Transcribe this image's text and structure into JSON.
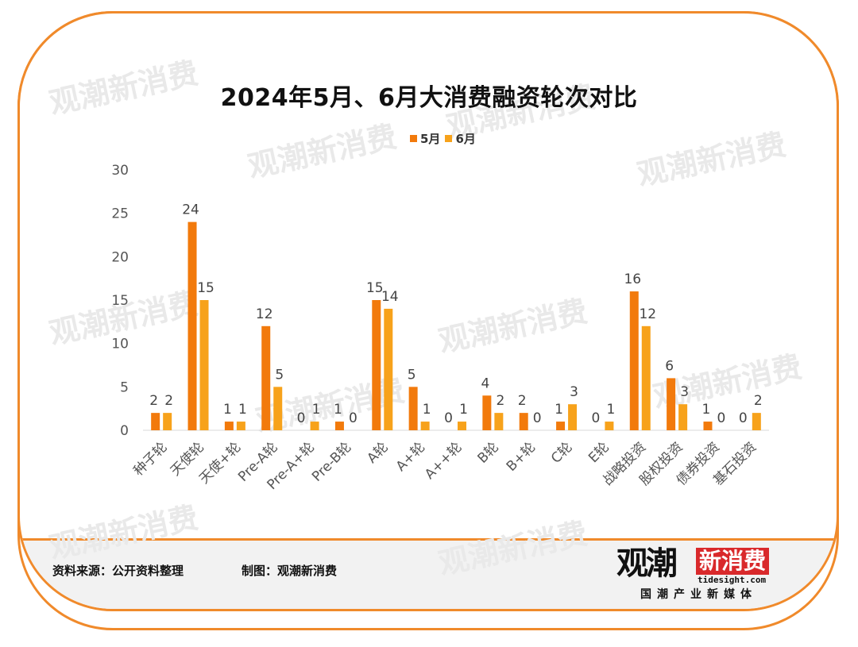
{
  "title": "2024年5月、6月大消费融资轮次对比",
  "footer": {
    "source": "资料来源：公开资料整理",
    "maker": "制图：观潮新消费"
  },
  "logo": {
    "name_dark": "观潮",
    "name_red": "新消费",
    "site": "tidesight.com",
    "slogan": "国潮产业新媒体"
  },
  "watermark": "观潮新消费",
  "colors": {
    "may": "#f27a0c",
    "june": "#f7a21b",
    "frame": "#f08a2b"
  },
  "chart_data": {
    "type": "bar",
    "title": "2024年5月、6月大消费融资轮次对比",
    "categories": [
      "种子轮",
      "天使轮",
      "天使+轮",
      "Pre-A轮",
      "Pre-A+轮",
      "Pre-B轮",
      "A轮",
      "A+轮",
      "A++轮",
      "B轮",
      "B+轮",
      "C轮",
      "E轮",
      "战略投资",
      "股权投资",
      "债券投资",
      "基石投资"
    ],
    "series": [
      {
        "name": "5月",
        "values": [
          2,
          24,
          1,
          12,
          0,
          1,
          15,
          5,
          0,
          4,
          2,
          1,
          0,
          16,
          6,
          1,
          0
        ]
      },
      {
        "name": "6月",
        "values": [
          2,
          15,
          1,
          5,
          1,
          0,
          14,
          1,
          1,
          2,
          0,
          3,
          1,
          12,
          3,
          0,
          2
        ]
      }
    ],
    "yticks": [
      0,
      5,
      10,
      15,
      20,
      25,
      30
    ],
    "ylim": [
      0,
      30
    ],
    "legend": "top-center",
    "grid": false
  }
}
